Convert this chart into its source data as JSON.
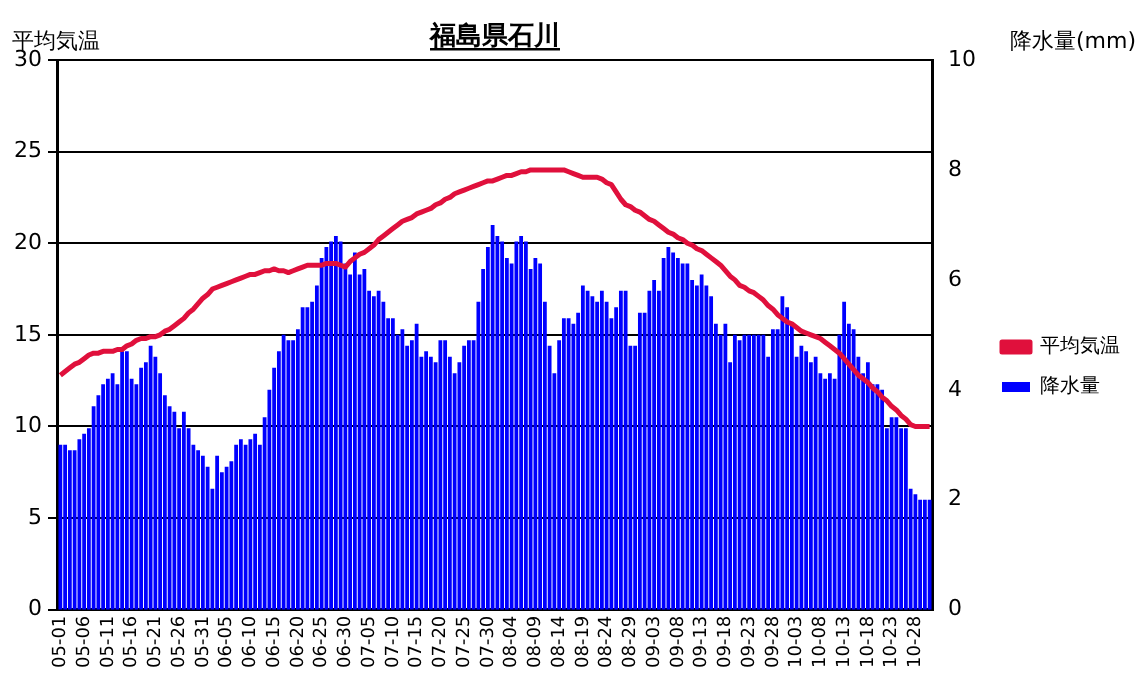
{
  "chart_data": {
    "type": "bar",
    "title": "福島県石川",
    "ylabel": "平均気温",
    "y2label": "降水量(mm)",
    "categories": [
      "05-01",
      null,
      null,
      null,
      null,
      "05-06",
      null,
      null,
      null,
      null,
      "05-11",
      null,
      null,
      null,
      null,
      "05-16",
      null,
      null,
      null,
      null,
      "05-21",
      null,
      null,
      null,
      null,
      "05-26",
      null,
      null,
      null,
      null,
      "05-31",
      null,
      null,
      null,
      null,
      "06-05",
      null,
      null,
      null,
      null,
      "06-10",
      null,
      null,
      null,
      null,
      "06-15",
      null,
      null,
      null,
      null,
      "06-20",
      null,
      null,
      null,
      null,
      "06-25",
      null,
      null,
      null,
      null,
      "06-30",
      null,
      null,
      null,
      null,
      "07-05",
      null,
      null,
      null,
      null,
      "07-10",
      null,
      null,
      null,
      null,
      "07-15",
      null,
      null,
      null,
      null,
      "07-20",
      null,
      null,
      null,
      null,
      "07-25",
      null,
      null,
      null,
      null,
      "07-30",
      null,
      null,
      null,
      null,
      "08-04",
      null,
      null,
      null,
      null,
      "08-09",
      null,
      null,
      null,
      null,
      "08-14",
      null,
      null,
      null,
      null,
      "08-19",
      null,
      null,
      null,
      null,
      "08-24",
      null,
      null,
      null,
      null,
      "08-29",
      null,
      null,
      null,
      null,
      "09-03",
      null,
      null,
      null,
      null,
      "09-08",
      null,
      null,
      null,
      null,
      "09-13",
      null,
      null,
      null,
      null,
      "09-18",
      null,
      null,
      null,
      null,
      "09-23",
      null,
      null,
      null,
      null,
      "09-28",
      null,
      null,
      null,
      null,
      "10-03",
      null,
      null,
      null,
      null,
      "10-08",
      null,
      null,
      null,
      null,
      "10-13",
      null,
      null,
      null,
      null,
      "10-18",
      null,
      null,
      null,
      null,
      "10-23",
      null,
      null,
      null,
      null,
      "10-28",
      null,
      null,
      null
    ],
    "series": [
      {
        "name": "平均気温",
        "type": "line",
        "color": "#e0103c",
        "values": [
          12.8,
          13.0,
          13.2,
          13.4,
          13.5,
          13.7,
          13.9,
          14.0,
          14.0,
          14.1,
          14.1,
          14.1,
          14.2,
          14.2,
          14.4,
          14.5,
          14.7,
          14.8,
          14.8,
          14.9,
          14.9,
          15.0,
          15.2,
          15.3,
          15.5,
          15.7,
          15.9,
          16.2,
          16.4,
          16.7,
          17.0,
          17.2,
          17.5,
          17.6,
          17.7,
          17.8,
          17.9,
          18.0,
          18.1,
          18.2,
          18.3,
          18.3,
          18.4,
          18.5,
          18.5,
          18.6,
          18.5,
          18.5,
          18.4,
          18.5,
          18.6,
          18.7,
          18.8,
          18.8,
          18.8,
          18.8,
          18.9,
          18.9,
          18.9,
          18.8,
          18.7,
          19.0,
          19.2,
          19.4,
          19.5,
          19.7,
          19.9,
          20.2,
          20.4,
          20.6,
          20.8,
          21.0,
          21.2,
          21.3,
          21.4,
          21.6,
          21.7,
          21.8,
          21.9,
          22.1,
          22.2,
          22.4,
          22.5,
          22.7,
          22.8,
          22.9,
          23.0,
          23.1,
          23.2,
          23.3,
          23.4,
          23.4,
          23.5,
          23.6,
          23.7,
          23.7,
          23.8,
          23.9,
          23.9,
          24.0,
          24.0,
          24.0,
          24.0,
          24.0,
          24.0,
          24.0,
          24.0,
          23.9,
          23.8,
          23.7,
          23.6,
          23.6,
          23.6,
          23.6,
          23.5,
          23.3,
          23.2,
          22.8,
          22.4,
          22.1,
          22.0,
          21.8,
          21.7,
          21.5,
          21.3,
          21.2,
          21.0,
          20.8,
          20.6,
          20.5,
          20.3,
          20.2,
          20.0,
          19.9,
          19.7,
          19.6,
          19.4,
          19.2,
          19.0,
          18.8,
          18.5,
          18.2,
          18.0,
          17.7,
          17.6,
          17.4,
          17.3,
          17.1,
          16.9,
          16.6,
          16.4,
          16.1,
          15.9,
          15.7,
          15.6,
          15.4,
          15.2,
          15.1,
          15.0,
          14.9,
          14.8,
          14.6,
          14.4,
          14.2,
          14.0,
          13.7,
          13.4,
          13.1,
          12.8,
          12.6,
          12.4,
          12.1,
          11.9,
          11.6,
          11.4,
          11.1,
          10.9,
          10.6,
          10.4,
          10.1,
          10.0,
          10.0,
          10.0,
          10.0
        ]
      },
      {
        "name": "降水量",
        "axis": "y2",
        "color": "#0000ff",
        "values": [
          3.0,
          3.0,
          2.9,
          2.9,
          3.1,
          3.2,
          3.3,
          3.7,
          3.9,
          4.1,
          4.2,
          4.3,
          4.1,
          4.7,
          4.7,
          4.2,
          4.1,
          4.4,
          4.5,
          4.8,
          4.6,
          4.3,
          3.9,
          3.7,
          3.6,
          3.3,
          3.6,
          3.3,
          3.0,
          2.9,
          2.8,
          2.6,
          2.2,
          2.8,
          2.5,
          2.6,
          2.7,
          3.0,
          3.1,
          3.0,
          3.1,
          3.2,
          3.0,
          3.5,
          4.0,
          4.4,
          4.7,
          5.0,
          4.9,
          4.9,
          5.1,
          5.5,
          5.5,
          5.6,
          5.9,
          6.4,
          6.6,
          6.7,
          6.8,
          6.7,
          6.3,
          6.1,
          6.5,
          6.1,
          6.2,
          5.8,
          5.7,
          5.8,
          5.6,
          5.3,
          5.3,
          5.0,
          5.1,
          4.8,
          4.9,
          5.2,
          4.6,
          4.7,
          4.6,
          4.5,
          4.9,
          4.9,
          4.6,
          4.3,
          4.5,
          4.8,
          4.9,
          4.9,
          5.6,
          6.2,
          6.6,
          7.0,
          6.8,
          6.7,
          6.4,
          6.3,
          6.7,
          6.8,
          6.7,
          6.2,
          6.4,
          6.3,
          5.6,
          4.8,
          4.3,
          4.9,
          5.3,
          5.3,
          5.2,
          5.4,
          5.9,
          5.8,
          5.7,
          5.6,
          5.8,
          5.6,
          5.3,
          5.5,
          5.8,
          5.8,
          4.8,
          4.8,
          5.4,
          5.4,
          5.8,
          6.0,
          5.8,
          6.4,
          6.6,
          6.5,
          6.4,
          6.3,
          6.3,
          6.0,
          5.9,
          6.1,
          5.9,
          5.7,
          5.2,
          5.0,
          5.2,
          4.5,
          5.0,
          4.9,
          5.0,
          5.0,
          5.0,
          5.0,
          5.0,
          4.6,
          5.1,
          5.1,
          5.7,
          5.5,
          5.2,
          4.6,
          4.8,
          4.7,
          4.5,
          4.6,
          4.3,
          4.2,
          4.3,
          4.2,
          5.0,
          5.6,
          5.2,
          5.1,
          4.6,
          4.3,
          4.5,
          4.1,
          4.1,
          4.0,
          3.3,
          3.5,
          3.5,
          3.3,
          3.3,
          2.2,
          2.1,
          2.0,
          2.0,
          2.0
        ]
      }
    ],
    "ylim": [
      0,
      30
    ],
    "yticks": [
      0,
      5,
      10,
      15,
      20,
      25,
      30
    ],
    "y2lim": [
      0,
      10
    ],
    "y2ticks": [
      0,
      2,
      4,
      6,
      8,
      10
    ],
    "grid": "y",
    "legend": "right"
  }
}
